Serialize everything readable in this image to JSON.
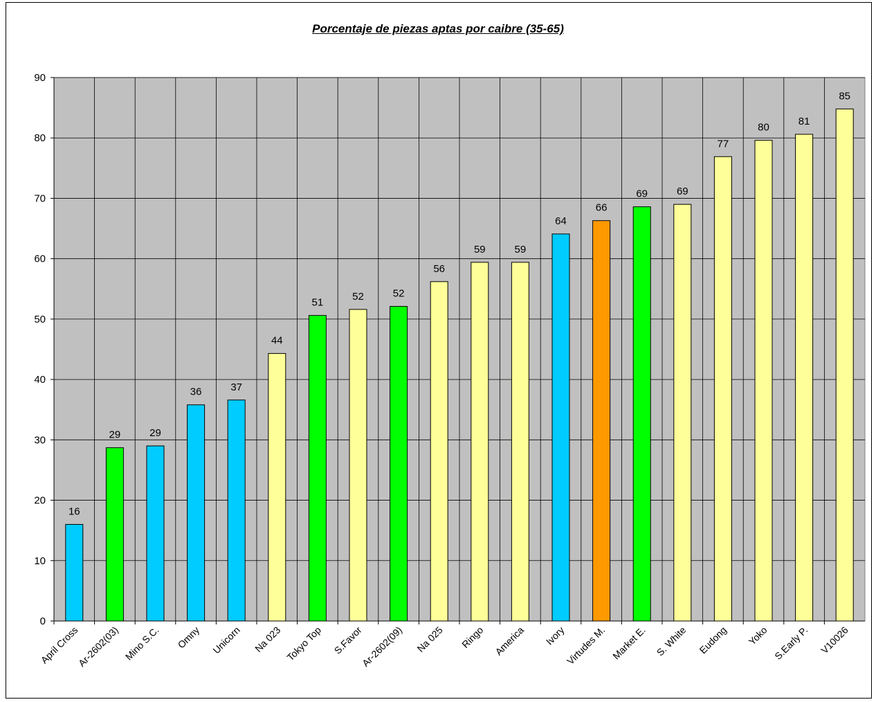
{
  "chart_data": {
    "type": "bar",
    "title": "Porcentaje de piezas aptas por caibre (35-65)",
    "xlabel": "",
    "ylabel": "",
    "ylim": [
      0,
      90
    ],
    "yticks": [
      0,
      10,
      20,
      30,
      40,
      50,
      60,
      70,
      80,
      90
    ],
    "grid": true,
    "categories": [
      "April Cross",
      "Ar-2602(03)",
      "Mino S.C.",
      "Omny",
      "Unicorn",
      "Na 023",
      "Tokyo Top",
      "S.Favor",
      "Ar-2602(09)",
      "Na 025",
      "Ringo",
      "America",
      "Ivory",
      "Virtudes M.",
      "Market E.",
      "S. White",
      "Eudong",
      "Yoko",
      "S.Early P.",
      "V10026"
    ],
    "values": [
      16,
      28.7,
      29,
      35.8,
      36.6,
      44.3,
      50.6,
      51.6,
      52.1,
      56.2,
      59.4,
      59.4,
      64.1,
      66.3,
      68.6,
      69,
      76.9,
      79.6,
      80.6,
      84.8
    ],
    "data_labels": [
      "16",
      "29",
      "29",
      "36",
      "37",
      "44",
      "51",
      "52",
      "52",
      "56",
      "59",
      "59",
      "64",
      "66",
      "69",
      "69",
      "77",
      "80",
      "81",
      "85"
    ],
    "bar_colors": [
      "#00ccff",
      "#00ff00",
      "#00ccff",
      "#00ccff",
      "#00ccff",
      "#ffff99",
      "#00ff00",
      "#ffff99",
      "#00ff00",
      "#ffff99",
      "#ffff99",
      "#ffff99",
      "#00ccff",
      "#ff9900",
      "#00ff00",
      "#ffff99",
      "#ffff99",
      "#ffff99",
      "#ffff99",
      "#ffff99"
    ],
    "plot_background": "#c0c0c0",
    "gridline_color": "#000000"
  }
}
